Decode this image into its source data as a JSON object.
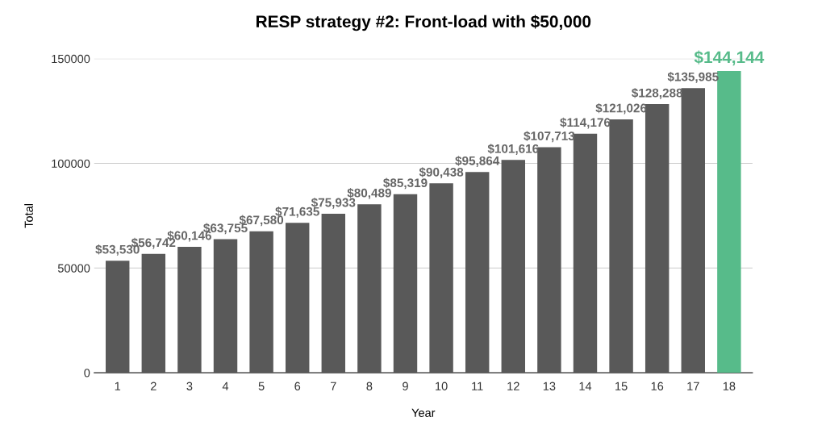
{
  "chart_data": {
    "type": "bar",
    "title": "RESP strategy #2: Front-load with $50,000",
    "xlabel": "Year",
    "ylabel": "Total",
    "categories": [
      "1",
      "2",
      "3",
      "4",
      "5",
      "6",
      "7",
      "8",
      "9",
      "10",
      "11",
      "12",
      "13",
      "14",
      "15",
      "16",
      "17",
      "18"
    ],
    "values": [
      53530,
      56742,
      60146,
      63755,
      67580,
      71635,
      75933,
      80489,
      85319,
      90438,
      95864,
      101616,
      107713,
      114176,
      121026,
      128288,
      135985,
      144144
    ],
    "colors": [
      "#595959",
      "#595959",
      "#595959",
      "#595959",
      "#595959",
      "#595959",
      "#595959",
      "#595959",
      "#595959",
      "#595959",
      "#595959",
      "#595959",
      "#595959",
      "#595959",
      "#595959",
      "#595959",
      "#595959",
      "#57bb8a"
    ],
    "value_labels": [
      "$53,530",
      "$56,742",
      "$60,146",
      "$63,755",
      "$67,580",
      "$71,635",
      "$75,933",
      "$80,489",
      "$85,319",
      "$90,438",
      "$95,864",
      "$101,616",
      "$107,713",
      "$114,176",
      "$121,026",
      "$128,288",
      "$135,985",
      "$144,144"
    ],
    "ylim": [
      0,
      150000
    ],
    "yticks": [
      0,
      50000,
      100000,
      150000
    ],
    "grid": "y"
  }
}
